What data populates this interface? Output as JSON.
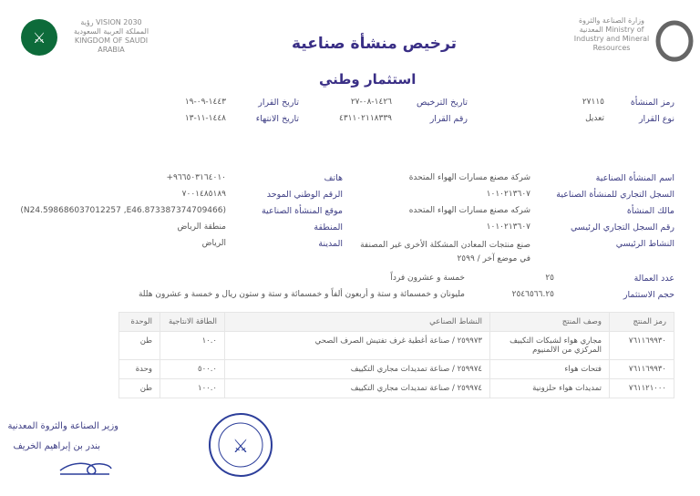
{
  "header": {
    "title": "ترخيص منشأة صناعية",
    "subtitle": "استثمار وطني",
    "ministry_logo_text": "وزارة الصناعة والثروة المعدنية Ministry of Industry and Mineral Resources",
    "vision_logo_text": "رؤية VISION 2030 المملكة العربية السعودية KINGDOM OF SAUDI ARABIA"
  },
  "license": {
    "facility_code_label": "رمز المنشأة",
    "facility_code": "٢٧١١٥",
    "decision_type_label": "نوع القرار",
    "decision_type": "تعديل",
    "license_date_label": "تاريخ الترخيص",
    "license_date": "١٤٢٦-٠٨-٢٧",
    "decision_number_label": "رقم القرار",
    "decision_number": "٤٣١١٠٢١١٨٣٣٩",
    "decision_date_label": "تاريخ القرار",
    "decision_date": "١٤٤٣-٠٩-١٩",
    "expiry_date_label": "تاريخ الانتهاء",
    "expiry_date": "١٤٤٨-١١-١٣"
  },
  "facility": {
    "name_label": "اسم المنشأة الصناعية",
    "name": "شركة مصنع مسارات الهواء المتحدة",
    "cr_label": "السجل التجاري للمنشأة الصناعية",
    "cr": "١٠١٠٢١٣٦٠٧",
    "owner_label": "مالك المنشأة",
    "owner": "شركه مصنع مسارات الهواء المتحده",
    "main_cr_label": "رقم السجل التجاري الرئيسي",
    "main_cr": "١٠١٠٢١٣٦٠٧",
    "activity_label": "النشاط الرئيسي",
    "activity": "صنع منتجات المعادن المشكلة الأخرى غير المصنفة في موضع آخر / ٢٥٩٩",
    "phone_label": "هاتف",
    "phone": "+٩٦٦٥٠٣١٦٤٠١٠",
    "unified_label": "الرقم الوطني الموحد",
    "unified": "٧٠٠١٤٨٥١٨٩",
    "location_label": "موقع المنشأة الصناعية",
    "location": "(N24.598686037012257 ,E46.873387374709466)",
    "region_label": "المنطقة",
    "region": "منطقة الرياض",
    "city_label": "المدينة",
    "city": "الرياض"
  },
  "employment": {
    "workers_label": "عدد العمالة",
    "workers": "٢٥",
    "workers_text": "خمسة و عشرون فرداً",
    "capital_label": "حجم الاستثمار",
    "capital": "٢٥٤٦٥٦٦.٢٥",
    "capital_text": "مليونان و خمسمائة و ستة و أربعون ألفاً  و خمسمائة و ستة و ستون ريال  و خمسة و عشرون هللة"
  },
  "products": {
    "headers": [
      "رمز المنتج",
      "وصف المنتج",
      "النشاط الصناعي",
      "الطاقة الانتاجية",
      "الوحدة"
    ],
    "rows": [
      [
        "٧٦١١٦٩٩٣٠",
        "مجاري هواء لشبكات التكييف المركزي من الالمنيوم",
        "٢٥٩٩٧٣ / صناعة أغطية غرف تفتيش الصرف الصحي",
        "١٠.٠",
        "طن"
      ],
      [
        "٧٦١١٦٩٩٣٠",
        "فتحات هواء",
        "٢٥٩٩٧٤ / صناعة تمديدات مجاري التكييف",
        "٥٠٠.٠",
        "وحدة"
      ],
      [
        "٧٦١١٢١٠٠٠",
        "تمديدات هواء حلزونية",
        "٢٥٩٩٧٤ / صناعة تمديدات مجاري التكييف",
        "١٠٠.٠",
        "طن"
      ]
    ]
  },
  "signature": {
    "title": "وزير الصناعة والثروة المعدنية",
    "name": "بندر بن إبراهيم الخريف",
    "seal_text": "وزارة الصناعة والثروة المعدنية Ministry of Industry & Mineral Resources"
  },
  "colors": {
    "accent": "#3a2f86",
    "label": "#3f3f85"
  }
}
